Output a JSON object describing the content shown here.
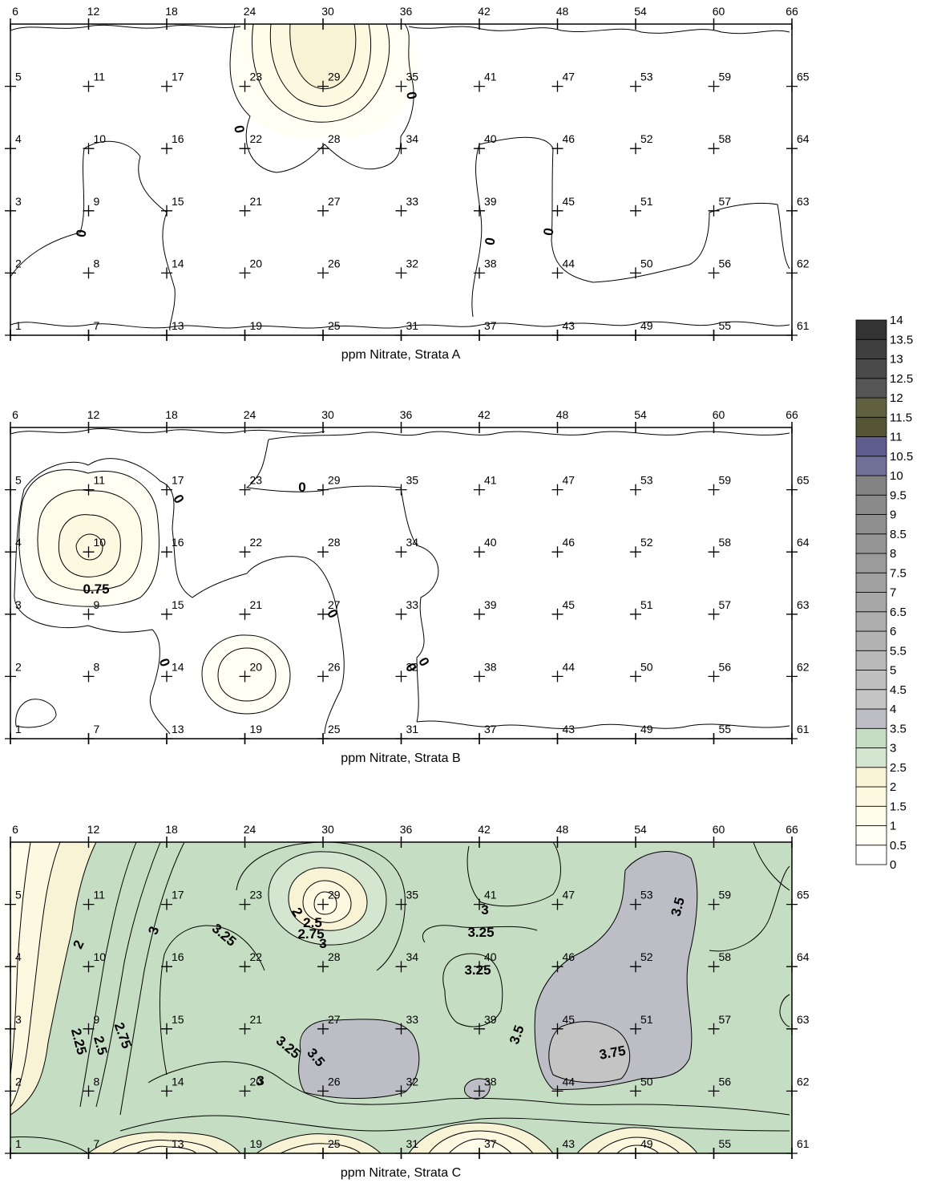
{
  "chart_data": [
    {
      "type": "heatmap",
      "title": "ppm Nitrate, Strata A",
      "top_labels": [
        "6",
        "12",
        "18",
        "24",
        "30",
        "36",
        "42",
        "48",
        "54",
        "60",
        "66"
      ],
      "grid_columns": [
        [
          "1",
          "2",
          "3",
          "4",
          "5"
        ],
        [
          "7",
          "8",
          "9",
          "10",
          "11"
        ],
        [
          "13",
          "14",
          "15",
          "16",
          "17"
        ],
        [
          "19",
          "20",
          "21",
          "22",
          "23"
        ],
        [
          "25",
          "26",
          "27",
          "28",
          "29"
        ],
        [
          "31",
          "32",
          "33",
          "34",
          "35"
        ],
        [
          "37",
          "38",
          "39",
          "40",
          "41"
        ],
        [
          "43",
          "44",
          "45",
          "46",
          "47"
        ],
        [
          "49",
          "50",
          "51",
          "52",
          "53"
        ],
        [
          "55",
          "56",
          "57",
          "58",
          "59"
        ],
        [
          "61",
          "62",
          "63",
          "64",
          "65"
        ]
      ],
      "contour_labels": [
        "0",
        "0",
        "0",
        "0",
        "0"
      ],
      "background_level": 0,
      "hotspots": [
        {
          "station": "29",
          "value": 2.0
        }
      ]
    },
    {
      "type": "heatmap",
      "title": "ppm Nitrate, Strata B",
      "top_labels": [
        "6",
        "12",
        "18",
        "24",
        "30",
        "36",
        "42",
        "48",
        "54",
        "60",
        "66"
      ],
      "grid_columns": [
        [
          "1",
          "2",
          "3",
          "4",
          "5"
        ],
        [
          "7",
          "8",
          "9",
          "10",
          "11"
        ],
        [
          "13",
          "14",
          "15",
          "16",
          "17"
        ],
        [
          "19",
          "20",
          "21",
          "22",
          "23"
        ],
        [
          "25",
          "26",
          "27",
          "28",
          "29"
        ],
        [
          "31",
          "32",
          "33",
          "34",
          "35"
        ],
        [
          "37",
          "38",
          "39",
          "40",
          "41"
        ],
        [
          "43",
          "44",
          "45",
          "46",
          "47"
        ],
        [
          "49",
          "50",
          "51",
          "52",
          "53"
        ],
        [
          "55",
          "56",
          "57",
          "58",
          "59"
        ],
        [
          "61",
          "62",
          "63",
          "64",
          "65"
        ]
      ],
      "contour_labels": [
        "0",
        "0",
        "0",
        "0.75",
        "0",
        "0",
        "0"
      ],
      "background_level": 0,
      "hotspots": [
        {
          "station": "10",
          "value": 1.5
        },
        {
          "station": "20",
          "value": 0.75
        }
      ]
    },
    {
      "type": "heatmap",
      "title": "ppm Nitrate, Strata C",
      "top_labels": [
        "6",
        "12",
        "18",
        "24",
        "30",
        "36",
        "42",
        "48",
        "54",
        "60",
        "66"
      ],
      "grid_columns": [
        [
          "1",
          "2",
          "3",
          "4",
          "5"
        ],
        [
          "7",
          "8",
          "9",
          "10",
          "11"
        ],
        [
          "13",
          "14",
          "15",
          "16",
          "17"
        ],
        [
          "19",
          "20",
          "21",
          "22",
          "23"
        ],
        [
          "25",
          "26",
          "27",
          "28",
          "29"
        ],
        [
          "31",
          "32",
          "33",
          "34",
          "35"
        ],
        [
          "37",
          "38",
          "39",
          "40",
          "41"
        ],
        [
          "43",
          "44",
          "45",
          "46",
          "47"
        ],
        [
          "49",
          "50",
          "51",
          "52",
          "53"
        ],
        [
          "55",
          "56",
          "57",
          "58",
          "59"
        ],
        [
          "61",
          "62",
          "63",
          "64",
          "65"
        ]
      ],
      "contour_labels": [
        "2",
        "2.25",
        "2.5",
        "2.75",
        "3",
        "3.25",
        "3.25",
        "3.5",
        "3",
        "2",
        "2.5",
        "2.75",
        "3",
        "3",
        "3.25",
        "3.25",
        "3.5",
        "3.5",
        "3.75"
      ],
      "background_level": 3.0
    }
  ],
  "legend": {
    "levels": [
      "0",
      "0.5",
      "1",
      "1.5",
      "2",
      "2.5",
      "3",
      "3.5",
      "4",
      "4.5",
      "5",
      "5.5",
      "6",
      "6.5",
      "7",
      "7.5",
      "8",
      "8.5",
      "9",
      "9.5",
      "10",
      "10.5",
      "11",
      "11.5",
      "12",
      "12.5",
      "13",
      "13.5",
      "14"
    ],
    "colors": [
      "#ffffff",
      "#fffff4",
      "#fffdea",
      "#fdf8e0",
      "#f9f3d6",
      "#d4e6cf",
      "#c5ddc2",
      "#bdbdc6",
      "#c4c4c4",
      "#bfbfbf",
      "#b9b9b9",
      "#b3b3b3",
      "#adadad",
      "#a7a7a7",
      "#a1a1a1",
      "#9b9b9b",
      "#959595",
      "#8f8f8f",
      "#898989",
      "#838383",
      "#6f6f98",
      "#5e5e8e",
      "#555535",
      "#616140",
      "#555555",
      "#4a4a4a",
      "#3f3f3f",
      "#333333"
    ]
  }
}
